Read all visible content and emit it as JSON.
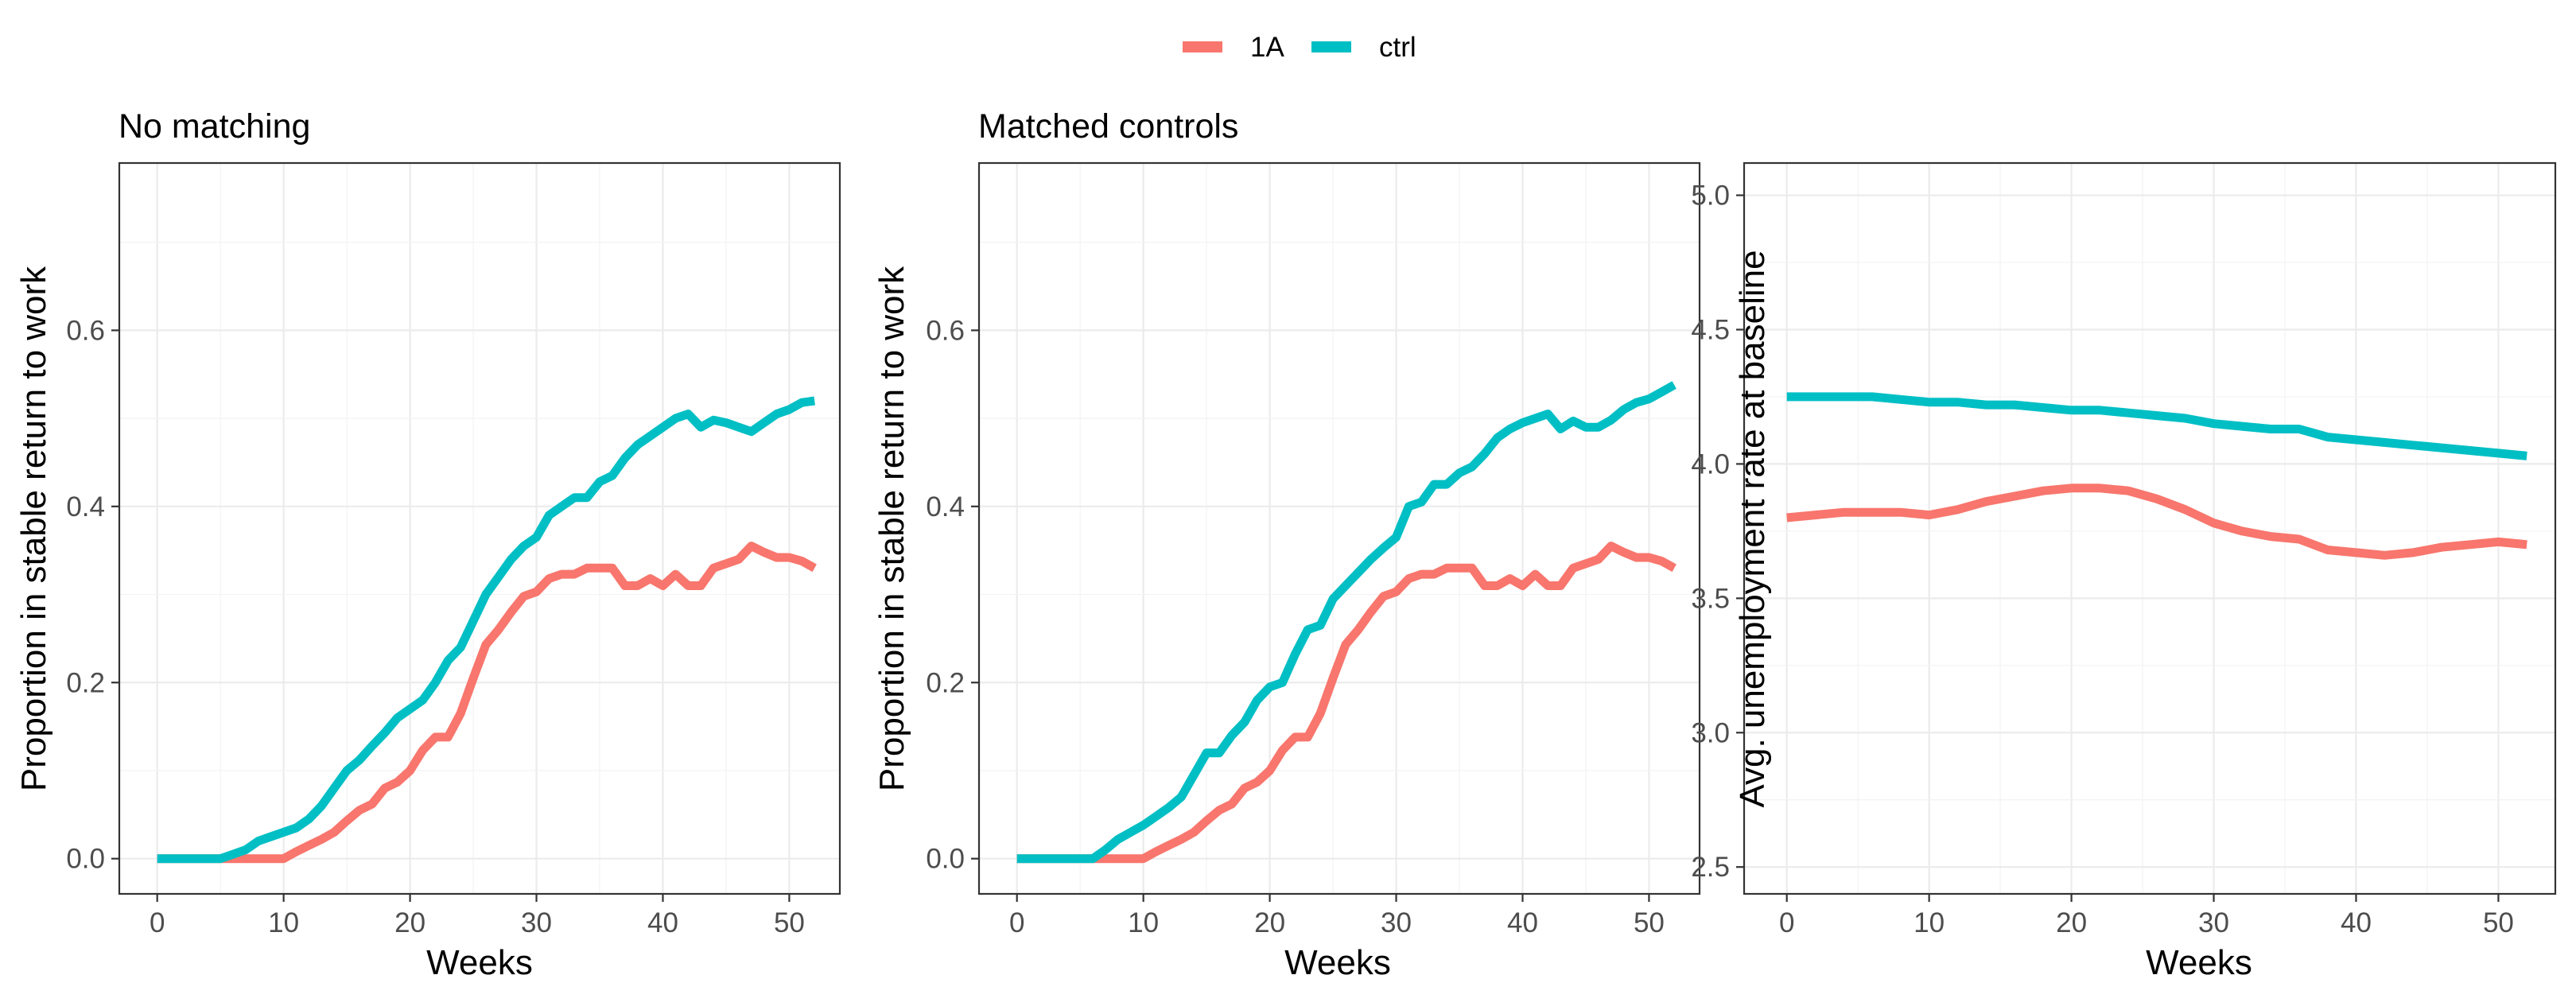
{
  "legend": [
    {
      "label": "1A",
      "color": "#F8766D"
    },
    {
      "label": "ctrl",
      "color": "#00BFC4"
    }
  ],
  "chart_data": [
    {
      "type": "line",
      "title": "No matching",
      "xlabel": "Weeks",
      "ylabel": "Proportion in stable return to work",
      "xlim": [
        -3,
        54
      ],
      "ylim": [
        -0.04,
        0.79
      ],
      "xticks": [
        0,
        10,
        20,
        30,
        40,
        50
      ],
      "yticks": [
        0.0,
        0.2,
        0.4,
        0.6
      ],
      "ytick_labels": [
        "0.0",
        "0.2",
        "0.4",
        "0.6"
      ],
      "grid": true,
      "x": [
        0,
        1,
        2,
        3,
        4,
        5,
        6,
        7,
        8,
        9,
        10,
        11,
        12,
        13,
        14,
        15,
        16,
        17,
        18,
        19,
        20,
        21,
        22,
        23,
        24,
        25,
        26,
        27,
        28,
        29,
        30,
        31,
        32,
        33,
        34,
        35,
        36,
        37,
        38,
        39,
        40,
        41,
        42,
        43,
        44,
        45,
        46,
        47,
        48,
        49,
        50,
        51,
        52
      ],
      "series": [
        {
          "name": "1A",
          "color": "#F8766D",
          "values": [
            0,
            0,
            0,
            0,
            0,
            0,
            0,
            0,
            0,
            0,
            0,
            0.008,
            0.015,
            0.022,
            0.03,
            0.043,
            0.055,
            0.062,
            0.08,
            0.087,
            0.1,
            0.123,
            0.138,
            0.138,
            0.165,
            0.205,
            0.243,
            0.26,
            0.28,
            0.298,
            0.303,
            0.318,
            0.323,
            0.323,
            0.33,
            0.33,
            0.33,
            0.31,
            0.31,
            0.318,
            0.31,
            0.323,
            0.31,
            0.31,
            0.33,
            0.335,
            0.34,
            0.355,
            0.348,
            0.342,
            0.342,
            0.338,
            0.33
          ]
        },
        {
          "name": "ctrl",
          "color": "#00BFC4",
          "values": [
            0,
            0,
            0,
            0,
            0,
            0,
            0.005,
            0.01,
            0.02,
            0.025,
            0.03,
            0.035,
            0.045,
            0.06,
            0.08,
            0.1,
            0.112,
            0.128,
            0.143,
            0.16,
            0.17,
            0.18,
            0.2,
            0.225,
            0.24,
            0.27,
            0.3,
            0.32,
            0.34,
            0.355,
            0.365,
            0.39,
            0.4,
            0.41,
            0.41,
            0.428,
            0.435,
            0.455,
            0.47,
            0.48,
            0.49,
            0.5,
            0.505,
            0.49,
            0.498,
            0.495,
            0.49,
            0.485,
            0.495,
            0.505,
            0.51,
            0.518,
            0.52
          ]
        }
      ]
    },
    {
      "type": "line",
      "title": "Matched controls",
      "xlabel": "Weeks",
      "ylabel": "Proportion in stable return to work",
      "xlim": [
        -3,
        54
      ],
      "ylim": [
        -0.04,
        0.79
      ],
      "xticks": [
        0,
        10,
        20,
        30,
        40,
        50
      ],
      "yticks": [
        0.0,
        0.2,
        0.4,
        0.6
      ],
      "ytick_labels": [
        "0.0",
        "0.2",
        "0.4",
        "0.6"
      ],
      "grid": true,
      "x": [
        0,
        1,
        2,
        3,
        4,
        5,
        6,
        7,
        8,
        9,
        10,
        11,
        12,
        13,
        14,
        15,
        16,
        17,
        18,
        19,
        20,
        21,
        22,
        23,
        24,
        25,
        26,
        27,
        28,
        29,
        30,
        31,
        32,
        33,
        34,
        35,
        36,
        37,
        38,
        39,
        40,
        41,
        42,
        43,
        44,
        45,
        46,
        47,
        48,
        49,
        50,
        51,
        52
      ],
      "series": [
        {
          "name": "1A",
          "color": "#F8766D",
          "values": [
            0,
            0,
            0,
            0,
            0,
            0,
            0,
            0,
            0,
            0,
            0,
            0.008,
            0.015,
            0.022,
            0.03,
            0.043,
            0.055,
            0.062,
            0.08,
            0.087,
            0.1,
            0.123,
            0.138,
            0.138,
            0.165,
            0.205,
            0.243,
            0.26,
            0.28,
            0.298,
            0.303,
            0.318,
            0.323,
            0.323,
            0.33,
            0.33,
            0.33,
            0.31,
            0.31,
            0.318,
            0.31,
            0.323,
            0.31,
            0.31,
            0.33,
            0.335,
            0.34,
            0.355,
            0.348,
            0.342,
            0.342,
            0.338,
            0.33
          ]
        },
        {
          "name": "ctrl",
          "color": "#00BFC4",
          "values": [
            0,
            0,
            0,
            0,
            0,
            0,
            0,
            0.01,
            0.022,
            0.03,
            0.038,
            0.048,
            0.058,
            0.07,
            0.095,
            0.12,
            0.12,
            0.14,
            0.155,
            0.18,
            0.195,
            0.2,
            0.232,
            0.26,
            0.265,
            0.295,
            0.31,
            0.325,
            0.34,
            0.353,
            0.365,
            0.4,
            0.405,
            0.425,
            0.425,
            0.438,
            0.445,
            0.46,
            0.478,
            0.488,
            0.495,
            0.5,
            0.505,
            0.488,
            0.497,
            0.49,
            0.49,
            0.498,
            0.51,
            0.518,
            0.522,
            0.53,
            0.538
          ]
        }
      ]
    },
    {
      "type": "line",
      "title": "",
      "xlabel": "Weeks",
      "ylabel": "Avg. unemployment rate at baseline",
      "xlim": [
        -3,
        54
      ],
      "ylim": [
        2.4,
        5.12
      ],
      "xticks": [
        0,
        10,
        20,
        30,
        40,
        50
      ],
      "yticks": [
        2.5,
        3.0,
        3.5,
        4.0,
        4.5,
        5.0
      ],
      "ytick_labels": [
        "2.5",
        "3.0",
        "3.5",
        "4.0",
        "4.5",
        "5.0"
      ],
      "grid": true,
      "x": [
        0,
        2,
        4,
        6,
        8,
        10,
        12,
        14,
        16,
        18,
        20,
        22,
        24,
        26,
        28,
        30,
        32,
        34,
        36,
        38,
        40,
        42,
        44,
        46,
        48,
        50,
        52
      ],
      "series": [
        {
          "name": "1A",
          "color": "#F8766D",
          "values": [
            3.8,
            3.81,
            3.82,
            3.82,
            3.82,
            3.81,
            3.83,
            3.86,
            3.88,
            3.9,
            3.91,
            3.91,
            3.9,
            3.87,
            3.83,
            3.78,
            3.75,
            3.73,
            3.72,
            3.68,
            3.67,
            3.66,
            3.67,
            3.69,
            3.7,
            3.71,
            3.7
          ]
        },
        {
          "name": "ctrl",
          "color": "#00BFC4",
          "values": [
            4.25,
            4.25,
            4.25,
            4.25,
            4.24,
            4.23,
            4.23,
            4.22,
            4.22,
            4.21,
            4.2,
            4.2,
            4.19,
            4.18,
            4.17,
            4.15,
            4.14,
            4.13,
            4.13,
            4.1,
            4.09,
            4.08,
            4.07,
            4.06,
            4.05,
            4.04,
            4.03
          ]
        }
      ]
    }
  ]
}
